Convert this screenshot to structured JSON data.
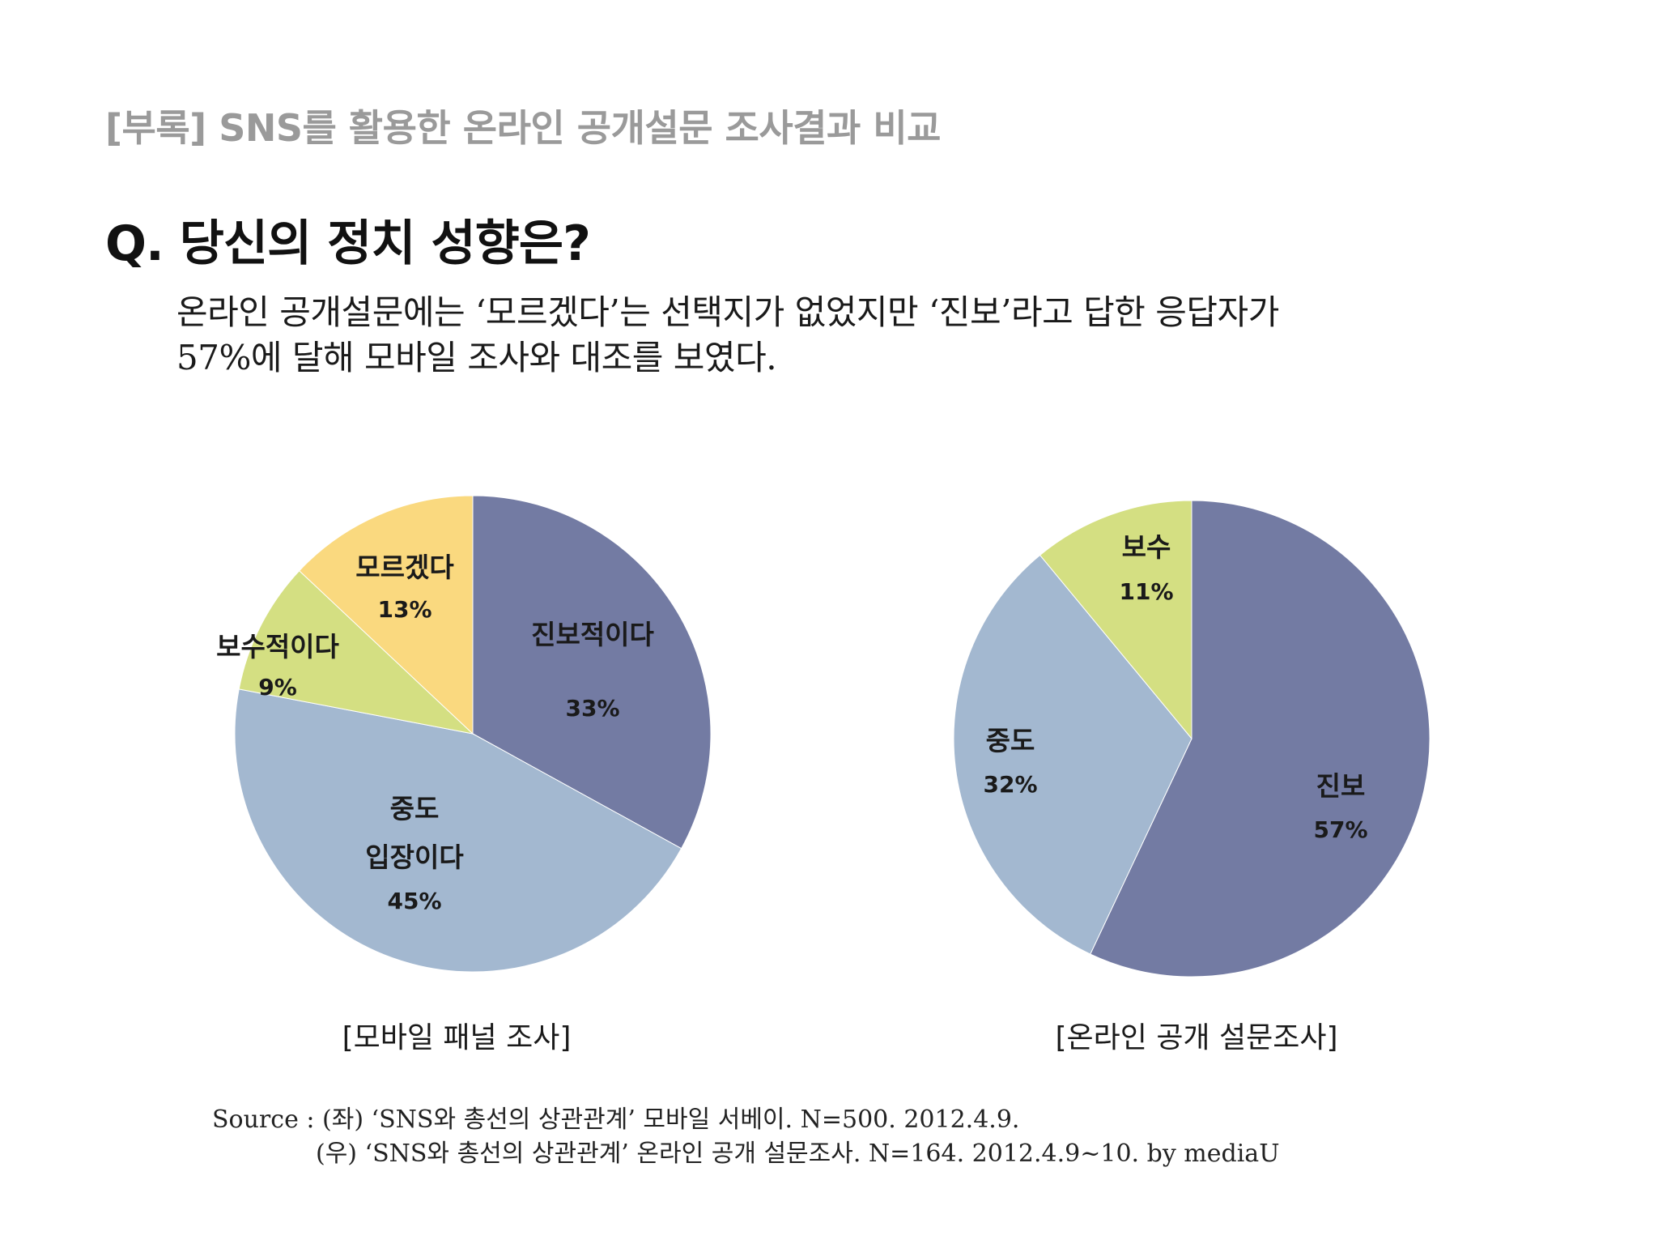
{
  "header": {
    "subtitle": "[부록] SNS를 활용한 온라인 공개설문 조사결과 비교",
    "question": "Q. 당신의 정치 성향은?",
    "description_lines": [
      "온라인 공개설문에는 ‘모르겠다’는 선택지가 없었지만 ‘진보’라고 답한 응답자가",
      "57%에 달해 모바일 조사와 대조를 보였다."
    ]
  },
  "chart_data": [
    {
      "type": "pie",
      "caption": "[모바일 패널 조사]",
      "slices": [
        {
          "label_lines": [
            "진보적이다"
          ],
          "value": 33,
          "pct_label": "33%",
          "color": "#737ba3"
        },
        {
          "label_lines": [
            "중도",
            "입장이다"
          ],
          "value": 45,
          "pct_label": "45%",
          "color": "#a3b8d0"
        },
        {
          "label_lines": [
            "보수적이다"
          ],
          "value": 9,
          "pct_label": "9%",
          "color": "#d4df82"
        },
        {
          "label_lines": [
            "모르겠다"
          ],
          "value": 13,
          "pct_label": "13%",
          "color": "#fad97f"
        }
      ]
    },
    {
      "type": "pie",
      "caption": "[온라인 공개 설문조사]",
      "slices": [
        {
          "label_lines": [
            "진보"
          ],
          "value": 57,
          "pct_label": "57%",
          "color": "#737ba3"
        },
        {
          "label_lines": [
            "중도"
          ],
          "value": 32,
          "pct_label": "32%",
          "color": "#a3b8d0"
        },
        {
          "label_lines": [
            "보수"
          ],
          "value": 11,
          "pct_label": "11%",
          "color": "#d4df82"
        }
      ]
    }
  ],
  "source": {
    "line1": "Source : (좌) ‘SNS와 총선의 상관관계’ 모바일 서베이. N=500. 2012.4.9.",
    "line2": "(우) ‘SNS와 총선의 상관관계’ 온라인 공개 설문조사. N=164. 2012.4.9~10.   by mediaU"
  }
}
